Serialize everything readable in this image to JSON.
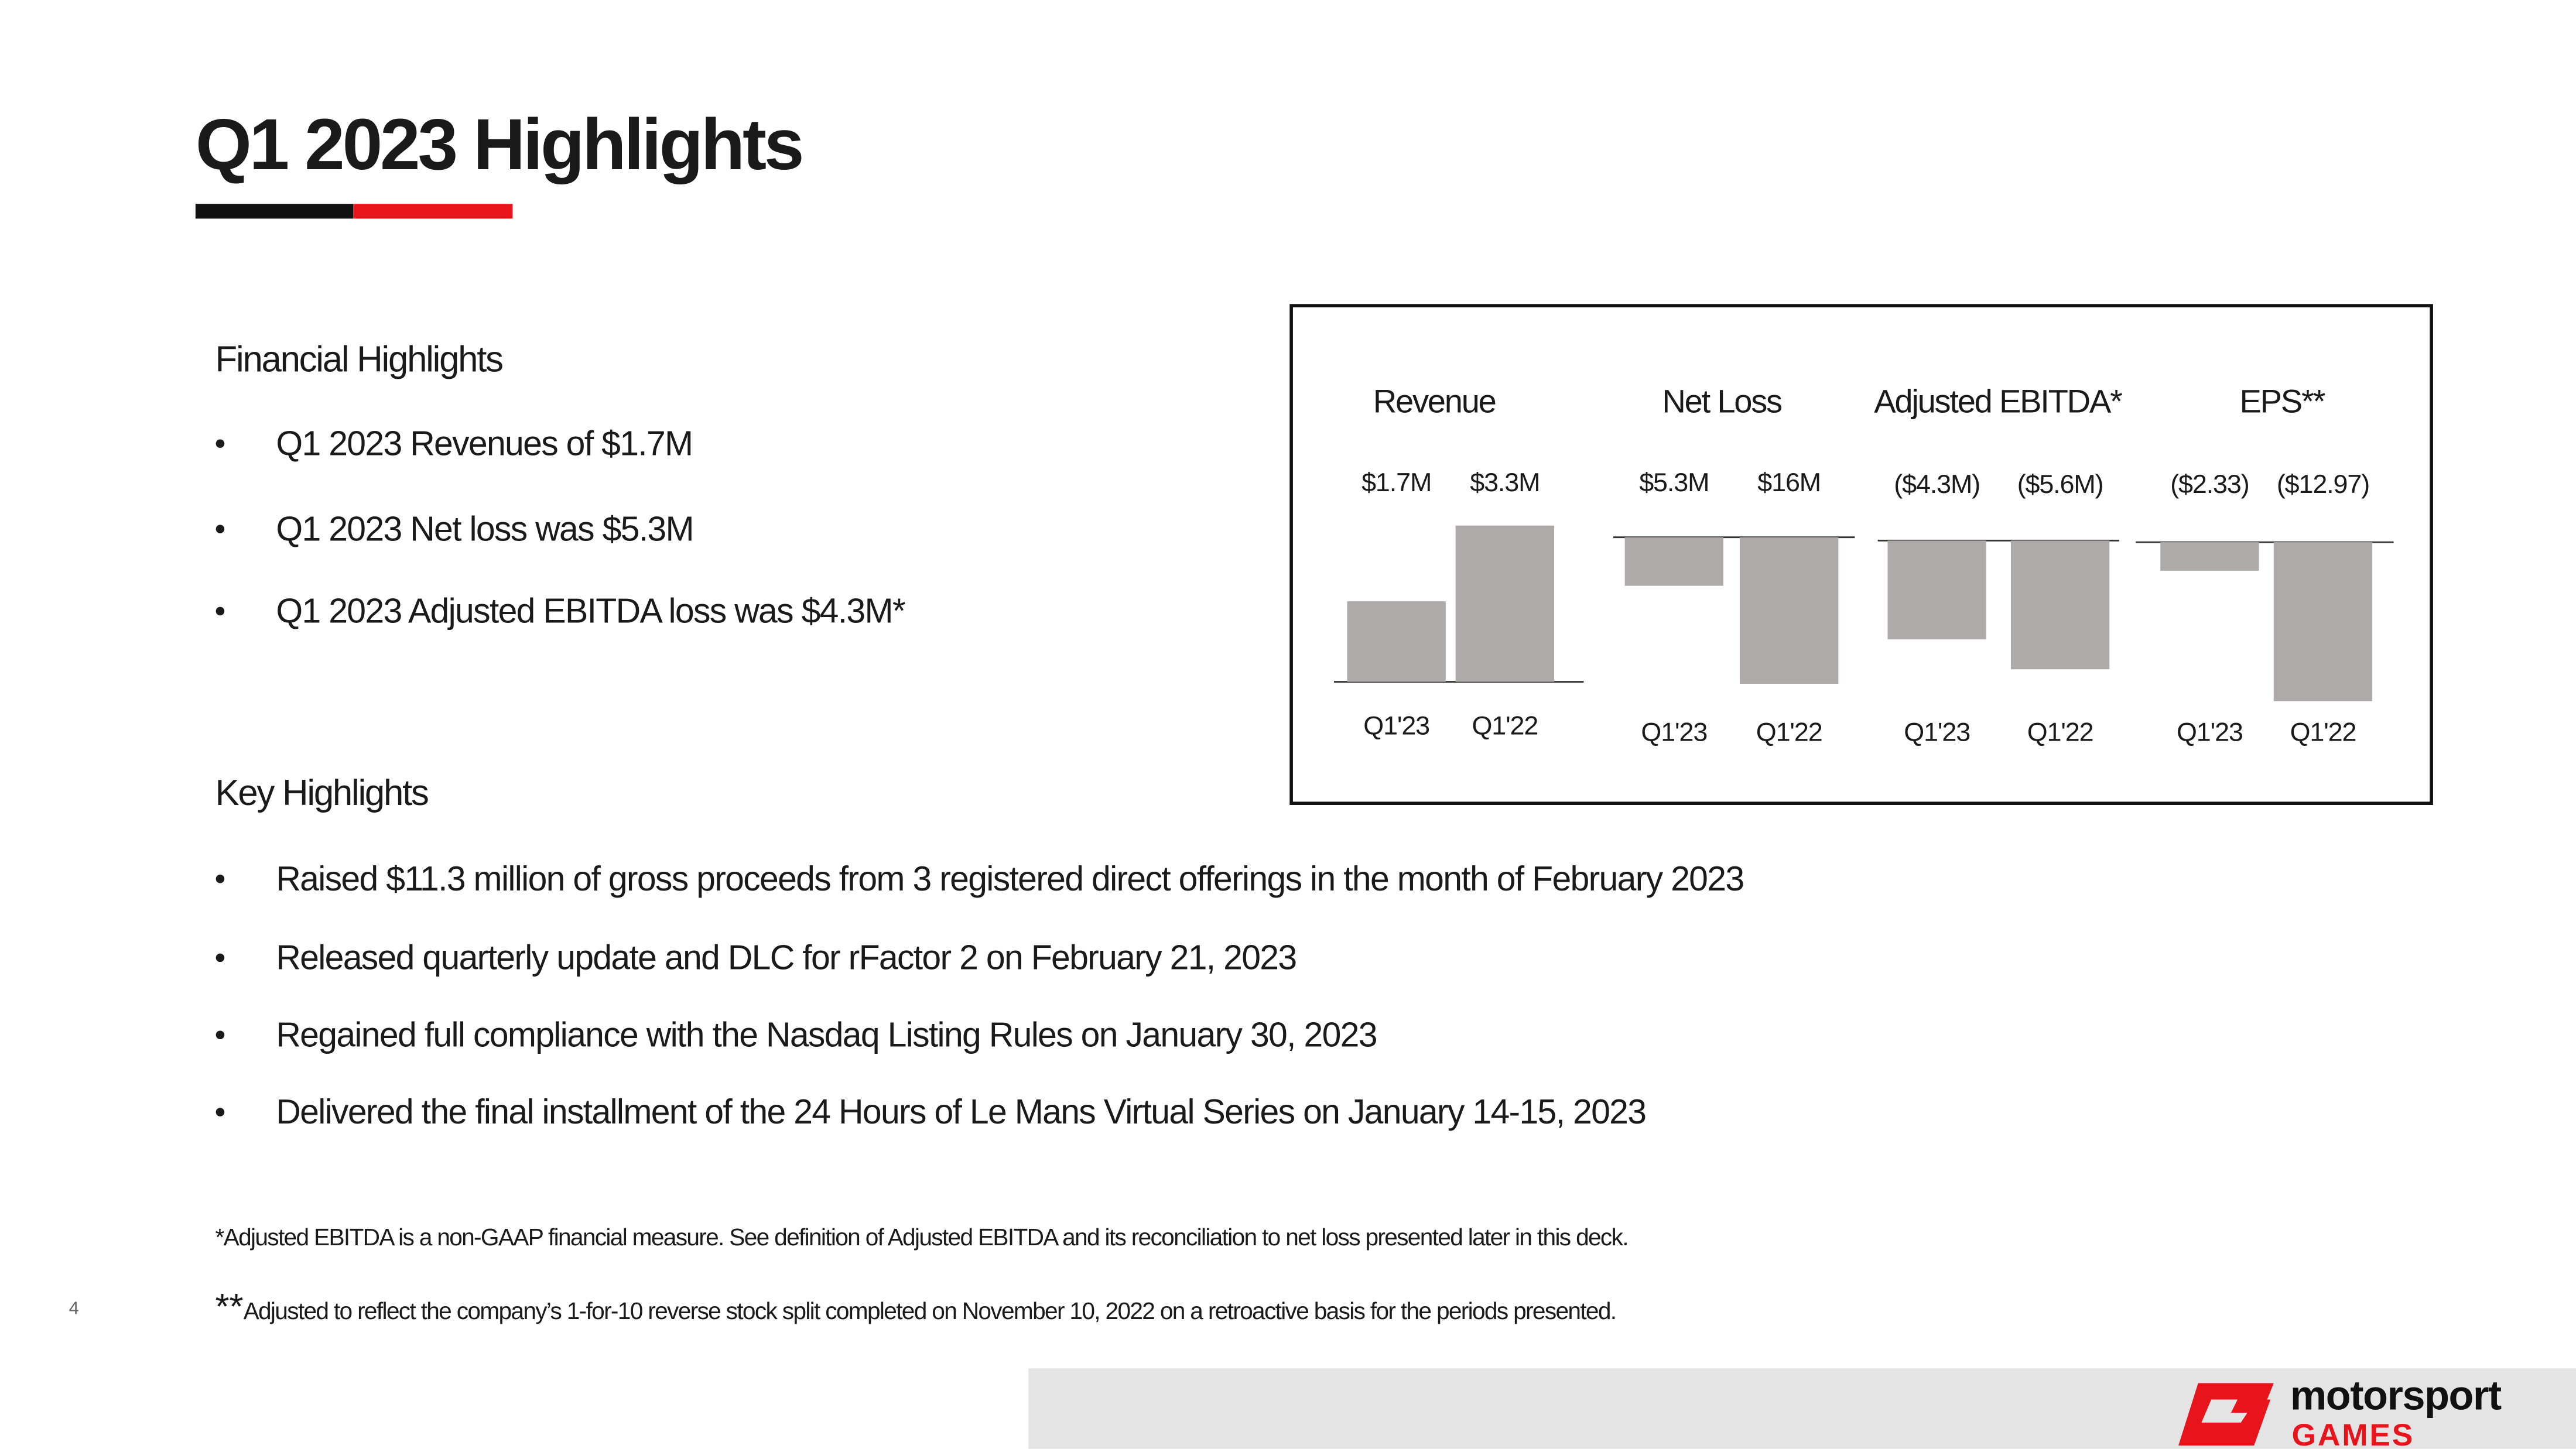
{
  "header": {
    "title": "Q1 2023 Highlights"
  },
  "financial_highlights": {
    "heading": "Financial Highlights",
    "items": [
      "Q1 2023 Revenues of $1.7M",
      "Q1 2023 Net loss was $5.3M",
      "Q1 2023 Adjusted EBITDA loss was $4.3M*"
    ]
  },
  "chart_data": [
    {
      "type": "bar",
      "title": "Revenue",
      "categories": [
        "Q1'23",
        "Q1'22"
      ],
      "values": [
        1.7,
        3.3
      ],
      "value_labels": [
        "$1.7M",
        "$3.3M"
      ],
      "color": "#aeaaaa",
      "ylim": [
        0,
        3.4
      ]
    },
    {
      "type": "bar",
      "title": "Net Loss",
      "categories": [
        "Q1'23",
        "Q1'22"
      ],
      "values": [
        -5.3,
        -16
      ],
      "value_labels": [
        "$5.3M",
        "$16M"
      ],
      "color": "#aeaaaa",
      "ylim": [
        -16.5,
        0
      ]
    },
    {
      "type": "bar",
      "title": "Adjusted EBITDA*",
      "categories": [
        "Q1'23",
        "Q1'22"
      ],
      "values": [
        -4.3,
        -5.6
      ],
      "value_labels": [
        "($4.3M)",
        "($5.6M)"
      ],
      "color": "#aeaaaa",
      "ylim": [
        -6,
        0
      ]
    },
    {
      "type": "bar",
      "title": "EPS**",
      "categories": [
        "Q1'23",
        "Q1'22"
      ],
      "values": [
        -2.33,
        -12.97
      ],
      "value_labels": [
        "($2.33)",
        "($12.97)"
      ],
      "color": "#aeaaaa",
      "ylim": [
        -13,
        0
      ]
    }
  ],
  "key_highlights": {
    "heading": "Key Highlights",
    "items": [
      "Raised $11.3 million of gross proceeds from 3 registered direct offerings in the month of February 2023",
      "Released quarterly update and DLC for rFactor 2 on February 21, 2023",
      "Regained full compliance with the Nasdaq Listing Rules on January 30, 2023",
      "Delivered the final installment of the 24 Hours of Le Mans Virtual Series on January 14-15, 2023"
    ]
  },
  "footnotes": {
    "first": "*Adjusted EBITDA is a non-GAAP financial measure. See definition of Adjusted EBITDA and its reconciliation to net loss presented later in this deck.",
    "second_mark": "**",
    "second": "Adjusted to reflect the company’s 1-for-10 reverse stock split completed on November 10, 2022 on a retroactive basis for the periods presented."
  },
  "page_number": "4",
  "logo": {
    "name": "motorsport",
    "tagline": "GAMES"
  }
}
